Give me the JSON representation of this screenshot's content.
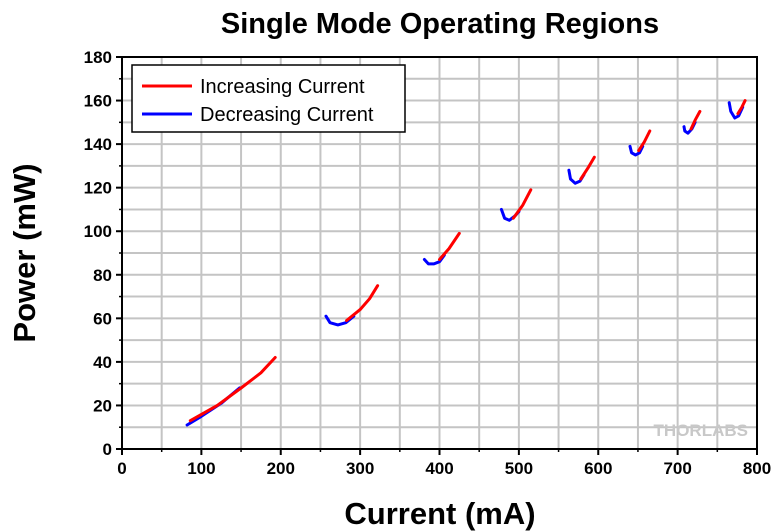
{
  "chart_data": {
    "type": "line",
    "title": "Single Mode Operating Regions",
    "xlabel": "Current (mA)",
    "ylabel": "Power (mW)",
    "xlim": [
      0,
      800
    ],
    "ylim": [
      0,
      180
    ],
    "xticks": [
      0,
      100,
      200,
      300,
      400,
      500,
      600,
      700,
      800
    ],
    "yticks": [
      0,
      20,
      40,
      60,
      80,
      100,
      120,
      140,
      160,
      180
    ],
    "grid": true,
    "legend_position": "top-left",
    "watermark": "THORLABS",
    "series": [
      {
        "name": "Increasing Current",
        "color": "#ff0000",
        "segments": [
          [
            [
              86,
              13
            ],
            [
              120,
              20
            ],
            [
              150,
              28
            ],
            [
              175,
              35
            ],
            [
              193,
              42
            ]
          ],
          [
            [
              283,
              59
            ],
            [
              300,
              64
            ],
            [
              312,
              69
            ],
            [
              322,
              75
            ]
          ],
          [
            [
              400,
              87
            ],
            [
              412,
              92
            ],
            [
              425,
              99
            ]
          ],
          [
            [
              493,
              106
            ],
            [
              505,
              112
            ],
            [
              515,
              119
            ]
          ],
          [
            [
              578,
              124
            ],
            [
              587,
              129
            ],
            [
              595,
              134
            ]
          ],
          [
            [
              651,
              137
            ],
            [
              658,
              141
            ],
            [
              665,
              146
            ]
          ],
          [
            [
              717,
              147
            ],
            [
              722,
              151
            ],
            [
              728,
              155
            ]
          ],
          [
            [
              776,
              154
            ],
            [
              781,
              157
            ],
            [
              785,
              160
            ]
          ]
        ]
      },
      {
        "name": "Decreasing Current",
        "color": "#0000ff",
        "segments": [
          [
            [
              82,
              11
            ],
            [
              100,
              15
            ],
            [
              125,
              21
            ],
            [
              148,
              28
            ]
          ],
          [
            [
              257,
              61
            ],
            [
              262,
              58
            ],
            [
              272,
              57
            ],
            [
              282,
              58
            ],
            [
              292,
              61
            ]
          ],
          [
            [
              381,
              87
            ],
            [
              386,
              85
            ],
            [
              393,
              85
            ],
            [
              400,
              86
            ],
            [
              406,
              89
            ]
          ],
          [
            [
              478,
              110
            ],
            [
              482,
              106
            ],
            [
              488,
              105
            ],
            [
              495,
              107
            ],
            [
              500,
              109
            ]
          ],
          [
            [
              563,
              128
            ],
            [
              565,
              124
            ],
            [
              571,
              122
            ],
            [
              577,
              123
            ],
            [
              582,
              126
            ]
          ],
          [
            [
              640,
              139
            ],
            [
              642,
              136
            ],
            [
              647,
              135
            ],
            [
              652,
              136
            ],
            [
              656,
              139
            ]
          ],
          [
            [
              708,
              148
            ],
            [
              709,
              146
            ],
            [
              713,
              145
            ],
            [
              718,
              147
            ],
            [
              722,
              150
            ]
          ],
          [
            [
              765,
              159
            ],
            [
              767,
              155
            ],
            [
              772,
              152
            ],
            [
              777,
              153
            ],
            [
              782,
              157
            ]
          ]
        ]
      }
    ]
  }
}
